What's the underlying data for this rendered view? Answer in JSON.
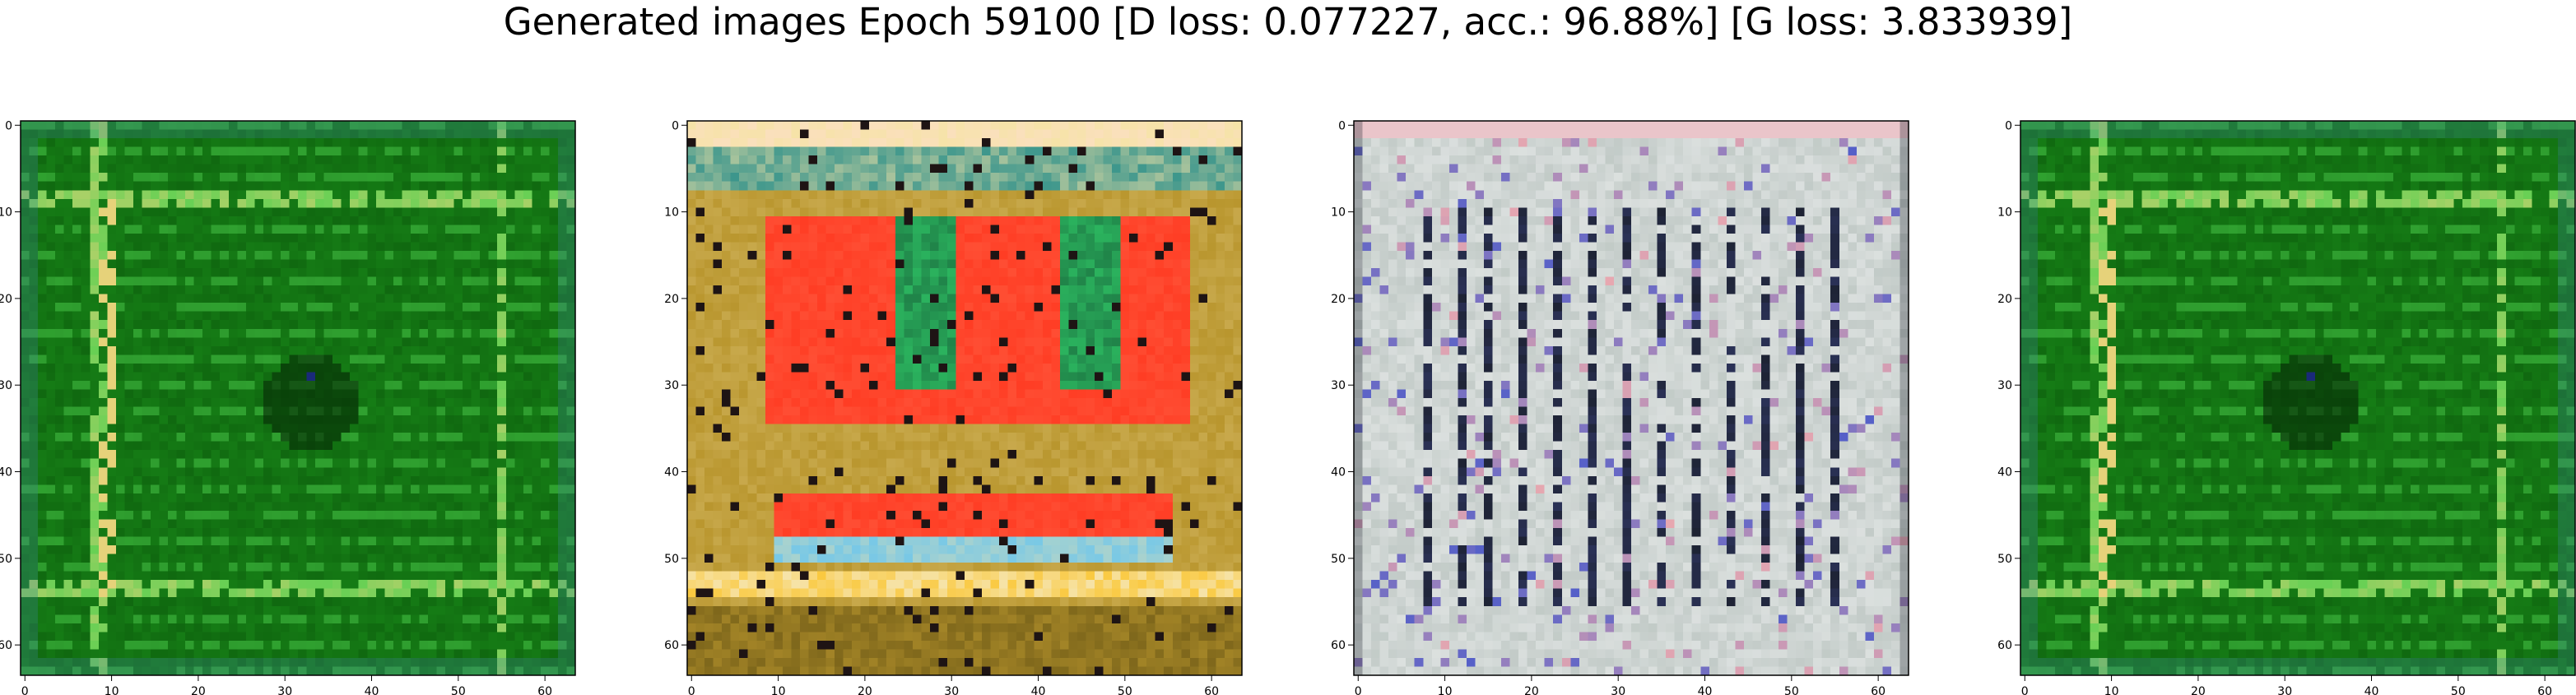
{
  "figure": {
    "title": "Generated images Epoch 59100 [D loss: 0.077227, acc.: 96.88%] [G loss: 3.833939]"
  },
  "panels": [
    {
      "name": "generated-image-1",
      "palette": {
        "base": "#1a8a1a",
        "dark": "#0b5a0b",
        "light": "#4ccf4c",
        "accent": "#e6d27a",
        "spot": "#1a2a7a"
      },
      "pattern": "green-frame"
    },
    {
      "name": "generated-image-2",
      "palette": {
        "base": "#b9962e",
        "dark": "#6e5a16",
        "light": "#f6e3a8",
        "accent": "#ff3d24",
        "spot": "#2bb35e"
      },
      "pattern": "red-blocks"
    },
    {
      "name": "generated-image-3",
      "palette": {
        "base": "#b8c2be",
        "dark": "#1a1f2a",
        "light": "#eef0f0",
        "accent": "#5560c8",
        "spot": "#e8a8b0"
      },
      "pattern": "vertical-stripes"
    },
    {
      "name": "generated-image-4",
      "palette": {
        "base": "#1a8a1a",
        "dark": "#0b5a0b",
        "light": "#4ccf4c",
        "accent": "#e6d27a",
        "spot": "#1a2a7a"
      },
      "pattern": "green-frame"
    }
  ],
  "axes": {
    "x_ticks": [
      0,
      10,
      20,
      30,
      40,
      50,
      60
    ],
    "y_ticks": [
      0,
      10,
      20,
      30,
      40,
      50,
      60
    ],
    "xlim": [
      -0.5,
      63.5
    ],
    "ylim": [
      63.5,
      -0.5
    ]
  }
}
